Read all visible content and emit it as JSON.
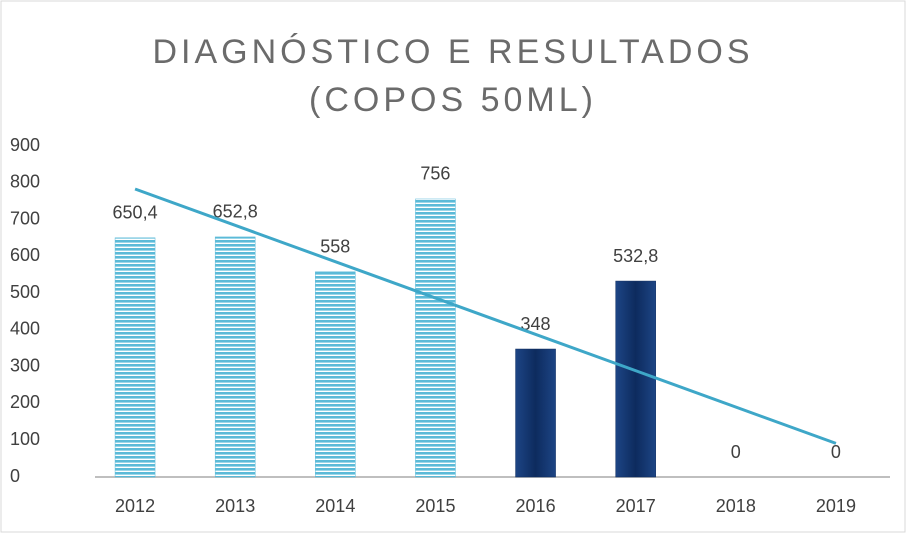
{
  "chart_data": {
    "type": "bar",
    "title": "DIAGNÓSTICO E RESULTADOS (COPOS 50ML)",
    "categories": [
      "2012",
      "2013",
      "2014",
      "2015",
      "2016",
      "2017",
      "2018",
      "2019"
    ],
    "values": [
      650.4,
      652.8,
      558,
      756,
      348,
      532.8,
      0,
      0
    ],
    "value_labels": [
      "650,4",
      "652,8",
      "558",
      "756",
      "348",
      "532,8",
      "0",
      "0"
    ],
    "colors": [
      "#5bbad8",
      "#5bbad8",
      "#5bbad8",
      "#5bbad8",
      "#0d2b5e",
      "#0d2b5e",
      "#0d2b5e",
      "#0d2b5e"
    ],
    "trendline": {
      "type": "linear",
      "color": "#3ea7c8"
    },
    "ylim": [
      0,
      900
    ],
    "yticks": [
      0,
      100,
      200,
      300,
      400,
      500,
      600,
      700,
      800,
      900
    ],
    "grid": false
  }
}
